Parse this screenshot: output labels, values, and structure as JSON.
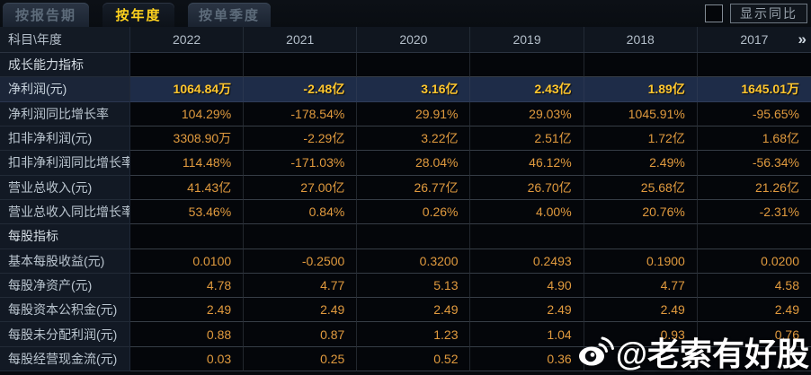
{
  "tabs": [
    {
      "label": "按报告期",
      "active": false
    },
    {
      "label": "按年度",
      "active": true
    },
    {
      "label": "按单季度",
      "active": false
    }
  ],
  "controls": {
    "show_yoy_label": "显示同比",
    "checkbox_checked": false
  },
  "table": {
    "corner_label": "科目\\年度",
    "years": [
      "2022",
      "2021",
      "2020",
      "2019",
      "2018",
      "2017"
    ],
    "more_icon": "»",
    "rows": [
      {
        "type": "section",
        "label": "成长能力指标",
        "values": [
          "",
          "",
          "",
          "",
          "",
          ""
        ]
      },
      {
        "type": "highlight",
        "label": "净利润(元)",
        "values": [
          "1064.84万",
          "-2.48亿",
          "3.16亿",
          "2.43亿",
          "1.89亿",
          "1645.01万"
        ]
      },
      {
        "type": "data",
        "label": "净利润同比增长率",
        "values": [
          "104.29%",
          "-178.54%",
          "29.91%",
          "29.03%",
          "1045.91%",
          "-95.65%"
        ]
      },
      {
        "type": "data",
        "label": "扣非净利润(元)",
        "values": [
          "3308.90万",
          "-2.29亿",
          "3.22亿",
          "2.51亿",
          "1.72亿",
          "1.68亿"
        ]
      },
      {
        "type": "data",
        "label": "扣非净利润同比增长率",
        "values": [
          "114.48%",
          "-171.03%",
          "28.04%",
          "46.12%",
          "2.49%",
          "-56.34%"
        ]
      },
      {
        "type": "data",
        "label": "营业总收入(元)",
        "values": [
          "41.43亿",
          "27.00亿",
          "26.77亿",
          "26.70亿",
          "25.68亿",
          "21.26亿"
        ]
      },
      {
        "type": "data",
        "label": "营业总收入同比增长率",
        "values": [
          "53.46%",
          "0.84%",
          "0.26%",
          "4.00%",
          "20.76%",
          "-2.31%"
        ]
      },
      {
        "type": "section",
        "label": "每股指标",
        "values": [
          "",
          "",
          "",
          "",
          "",
          ""
        ]
      },
      {
        "type": "data",
        "label": "基本每股收益(元)",
        "values": [
          "0.0100",
          "-0.2500",
          "0.3200",
          "0.2493",
          "0.1900",
          "0.0200"
        ]
      },
      {
        "type": "data",
        "label": "每股净资产(元)",
        "values": [
          "4.78",
          "4.77",
          "5.13",
          "4.90",
          "4.77",
          "4.58"
        ]
      },
      {
        "type": "data",
        "label": "每股资本公积金(元)",
        "values": [
          "2.49",
          "2.49",
          "2.49",
          "2.49",
          "2.49",
          "2.49"
        ]
      },
      {
        "type": "data",
        "label": "每股未分配利润(元)",
        "values": [
          "0.88",
          "0.87",
          "1.23",
          "1.04",
          "0.93",
          "0.76"
        ]
      },
      {
        "type": "data",
        "label": "每股经营现金流(元)",
        "values": [
          "0.03",
          "0.25",
          "0.52",
          "0.36",
          "",
          ""
        ]
      }
    ]
  },
  "watermark": {
    "text": "@老索有好股",
    "icon": "weibo-icon"
  },
  "colors": {
    "tab_active_text": "#ffd21e",
    "value_orange": "#e09a3e",
    "highlight_value_gold": "#ffc62e",
    "highlight_row_bg": "#1e2c48",
    "label_column_bg": "#121924",
    "data_cell_bg": "#04060a"
  }
}
